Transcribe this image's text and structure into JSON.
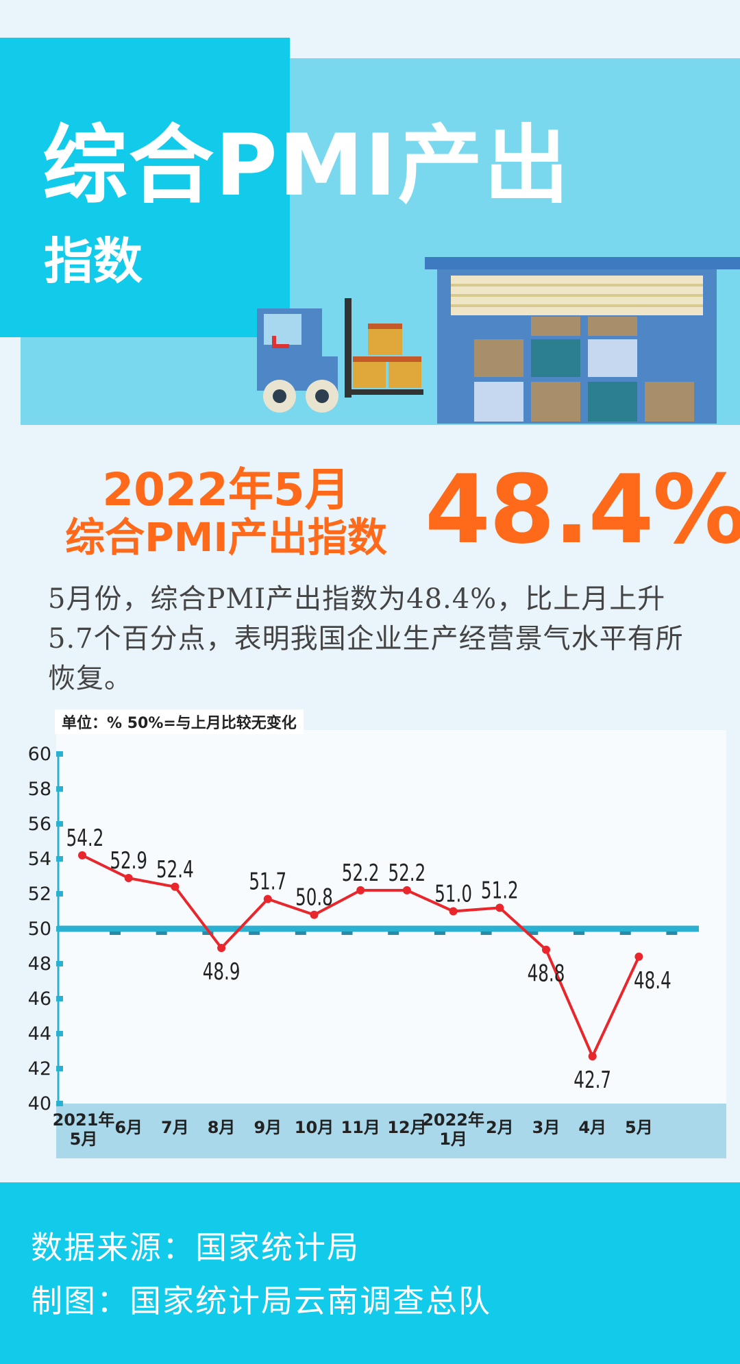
{
  "header": {
    "title_line1": "综合PMI产出",
    "title_line2": "指数"
  },
  "headline": {
    "date": "2022年5月",
    "label": "综合PMI产出指数",
    "value": "48.4%"
  },
  "description": "5月份，综合PMI产出指数为48.4%，比上月上升5.7个百分点，表明我国企业生产经营景气水平有所恢复。",
  "chart_unit_note": "单位：%  50%=与上月比较无变化",
  "chart_data": {
    "type": "line",
    "categories": [
      [
        "2021年",
        "5月"
      ],
      [
        "6月"
      ],
      [
        "7月"
      ],
      [
        "8月"
      ],
      [
        "9月"
      ],
      [
        "10月"
      ],
      [
        "11月"
      ],
      [
        "12月"
      ],
      [
        "2022年",
        "1月"
      ],
      [
        "2月"
      ],
      [
        "3月"
      ],
      [
        "4月"
      ],
      [
        "5月"
      ]
    ],
    "values": [
      54.2,
      52.9,
      52.4,
      48.9,
      51.7,
      50.8,
      52.2,
      52.2,
      51.0,
      51.2,
      48.8,
      42.7,
      48.4
    ],
    "value_labels": [
      "54.2",
      "52.9",
      "52.4",
      "48.9",
      "51.7",
      "50.8",
      "52.2",
      "52.2",
      "51.0",
      "51.2",
      "48.8",
      "42.7",
      "48.4"
    ],
    "label_positions": [
      "above",
      "above",
      "above",
      "below",
      "above",
      "above",
      "above",
      "above",
      "above",
      "above",
      "below",
      "below",
      "below"
    ],
    "yticks": [
      "60",
      "58",
      "56",
      "54",
      "52",
      "50",
      "48",
      "46",
      "44",
      "42",
      "40"
    ],
    "ylim": [
      40,
      60
    ],
    "reference_line": 50,
    "colors": {
      "line": "#e8262b",
      "reference": "#2ab0d0",
      "plot_bg": "#f7fbfe",
      "axis_band": "#a8d8ea"
    }
  },
  "footer": {
    "source": "数据来源：国家统计局",
    "credit": "制图：国家统计局云南调查总队"
  }
}
